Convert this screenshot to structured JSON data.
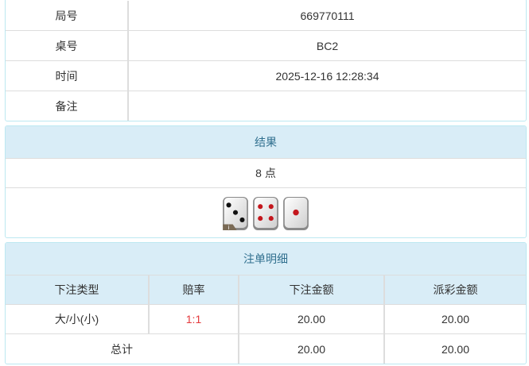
{
  "info": {
    "rows": [
      {
        "label": "局号",
        "value": "669770111"
      },
      {
        "label": "桌号",
        "value": "BC2"
      },
      {
        "label": "时间",
        "value": "2025-12-16 12:28:34"
      },
      {
        "label": "备注",
        "value": ""
      }
    ]
  },
  "result": {
    "title": "结果",
    "points_text": "8 点",
    "dice": [
      3,
      4,
      1
    ],
    "info_badge": "i"
  },
  "bets": {
    "title": "注单明细",
    "columns": [
      "下注类型",
      "赔率",
      "下注金额",
      "派彩金额"
    ],
    "rows": [
      {
        "type": "大/小(小)",
        "odds": "1:1",
        "amount": "20.00",
        "payout": "20.00"
      }
    ],
    "total": {
      "label": "总计",
      "amount": "20.00",
      "payout": "20.00"
    }
  },
  "colors": {
    "header_bg": "#d9edf7",
    "header_text": "#31708f",
    "odds": "#e4393c",
    "border": "#bce8f1"
  }
}
